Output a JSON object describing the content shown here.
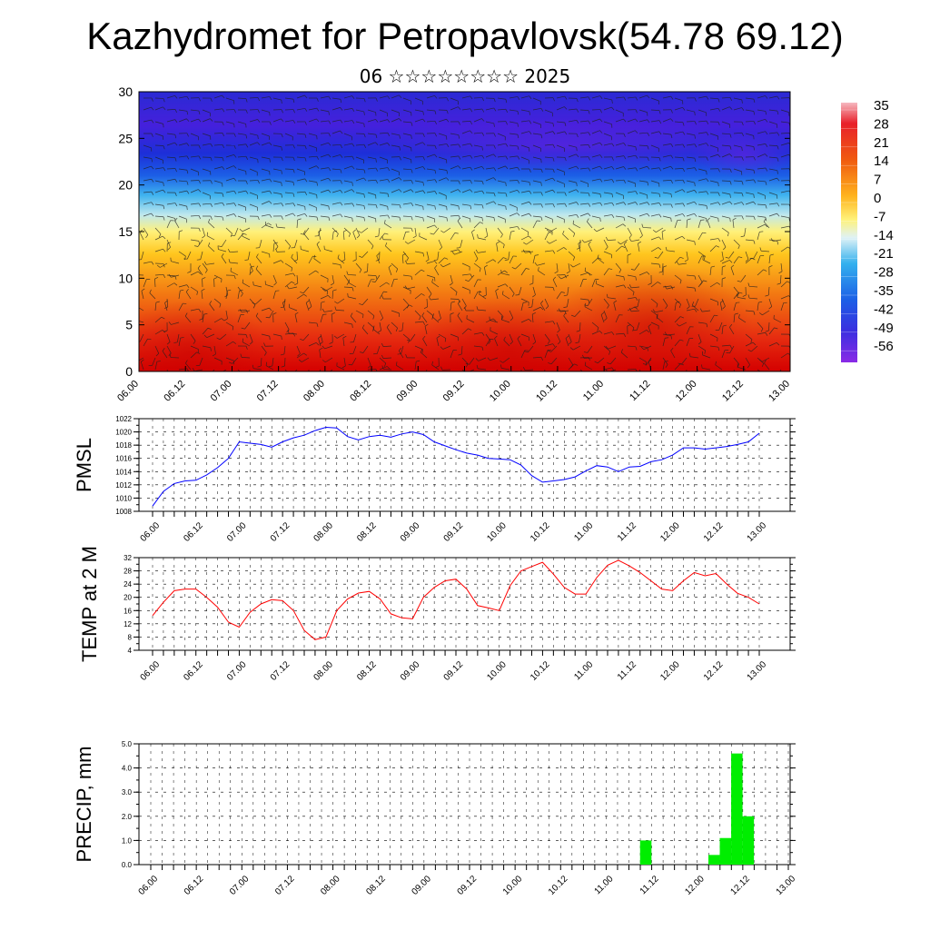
{
  "title": "Kazhydromet for Petropavlovsk(54.78 69.12)",
  "subtitle": "06 ☆☆☆☆☆☆☆☆ 2025",
  "colorbar": {
    "labels": [
      "35",
      "28",
      "21",
      "14",
      "7",
      "0",
      "-7",
      "-14",
      "-21",
      "-28",
      "-35",
      "-42",
      "-49",
      "-56"
    ]
  },
  "time_labels": [
    "06.00",
    "06.12",
    "07.00",
    "07.12",
    "08.00",
    "08.12",
    "09.00",
    "09.12",
    "10.00",
    "10.12",
    "11.00",
    "11.12",
    "12.00",
    "12.12",
    "13.00"
  ],
  "chart_data": [
    {
      "type": "heatmap",
      "name": "cross-section",
      "ylim": [
        0,
        30
      ],
      "y_ticks": [
        "0",
        "5",
        "10",
        "15",
        "20",
        "25",
        "30"
      ],
      "x_ticks": [
        "06.00",
        "06.12",
        "07.00",
        "07.12",
        "08.00",
        "08.12",
        "09.00",
        "09.12",
        "10.00",
        "10.12",
        "11.00",
        "11.12",
        "12.00",
        "12.12",
        "13.00"
      ],
      "color_levels": [
        35,
        28,
        21,
        14,
        7,
        0,
        -7,
        -14,
        -21,
        -28,
        -35,
        -42,
        -49,
        -56
      ],
      "description_overlay": "wind barbs"
    },
    {
      "type": "line",
      "ylabel": "PMSL",
      "ylim": [
        1008,
        1022
      ],
      "y_ticks": [
        "1022",
        "1020",
        "1018",
        "1016",
        "1014",
        "1012",
        "1010",
        "1008"
      ],
      "color": "#0000ff",
      "x_step_hours": 3,
      "values": [
        1008.8,
        1011,
        1012.2,
        1012.6,
        1012.7,
        1013.5,
        1014.6,
        1016,
        1018.5,
        1018.3,
        1018.1,
        1017.7,
        1018.5,
        1019.1,
        1019.5,
        1020.2,
        1020.7,
        1020.6,
        1019.3,
        1018.8,
        1019.3,
        1019.5,
        1019.2,
        1019.7,
        1020,
        1019.6,
        1018.5,
        1017.9,
        1017.3,
        1016.8,
        1016.5,
        1016,
        1015.9,
        1015.8,
        1015,
        1013.4,
        1012.4,
        1012.6,
        1012.8,
        1013.2,
        1014.1,
        1014.9,
        1014.7,
        1014,
        1014.7,
        1014.8,
        1015.5,
        1015.8,
        1016.5,
        1017.6,
        1017.6,
        1017.4,
        1017.6,
        1017.8,
        1018.1,
        1018.5,
        1019.8
      ]
    },
    {
      "type": "line",
      "ylabel": "TEMP at 2 M",
      "ylim": [
        4,
        32
      ],
      "y_ticks": [
        "32",
        "28",
        "24",
        "20",
        "16",
        "12",
        "8",
        "4"
      ],
      "color": "#ff0000",
      "x_step_hours": 3,
      "values": [
        14.5,
        18.5,
        22,
        22.5,
        22.5,
        20,
        17,
        12.5,
        11,
        15.5,
        18,
        19.3,
        19,
        16,
        10,
        7.2,
        8,
        16,
        19.5,
        21.3,
        21.8,
        19.5,
        15,
        13.8,
        13.5,
        20,
        23,
        25,
        25.5,
        22.5,
        17.5,
        16.8,
        16,
        23.5,
        28,
        29.3,
        30.6,
        27,
        23,
        21,
        21,
        26,
        29.7,
        31.2,
        29.5,
        27.5,
        25,
        22.5,
        22,
        25,
        27.5,
        26.5,
        27.2,
        24,
        21.2,
        20,
        18
      ]
    },
    {
      "type": "bar",
      "ylabel": "PRECIP, mm",
      "ylim": [
        0,
        5
      ],
      "y_ticks": [
        "5.0",
        "4.0",
        "3.0",
        "2.0",
        "1.0",
        "0.0"
      ],
      "color": "#00ee00",
      "x_step_hours": 3,
      "values": [
        0,
        0,
        0,
        0,
        0,
        0,
        0,
        0,
        0,
        0,
        0,
        0,
        0,
        0,
        0,
        0,
        0,
        0,
        0,
        0,
        0,
        0,
        0,
        0,
        0,
        0,
        0,
        0,
        0,
        0,
        0,
        0,
        0,
        0,
        0,
        0,
        0,
        0,
        0,
        0,
        0,
        0,
        0,
        1.0,
        0,
        0,
        0,
        0,
        0,
        0.4,
        1.1,
        4.6,
        2.0,
        0,
        0,
        0,
        0
      ]
    }
  ]
}
